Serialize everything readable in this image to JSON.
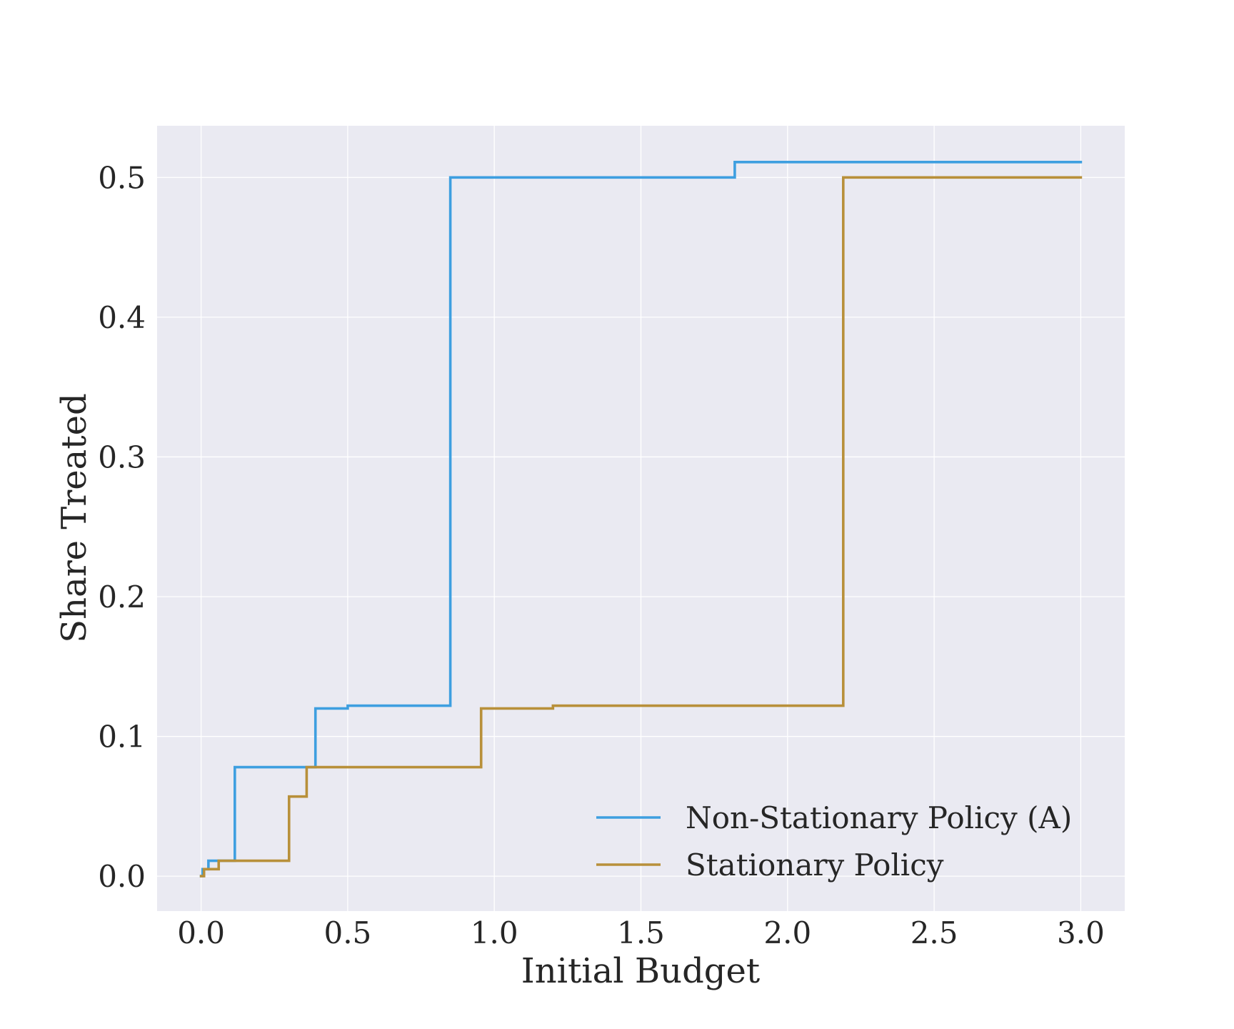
{
  "chart_data": {
    "type": "line",
    "drawstyle": "steps-post",
    "xlabel": "Initial Budget",
    "ylabel": "Share Treated",
    "xlim": [
      -0.15,
      3.15
    ],
    "ylim": [
      -0.025,
      0.537
    ],
    "xticks": [
      0.0,
      0.5,
      1.0,
      1.5,
      2.0,
      2.5,
      3.0
    ],
    "xtick_labels": [
      "0.0",
      "0.5",
      "1.0",
      "1.5",
      "2.0",
      "2.5",
      "3.0"
    ],
    "yticks": [
      0.0,
      0.1,
      0.2,
      0.3,
      0.4,
      0.5
    ],
    "ytick_labels": [
      "0.0",
      "0.1",
      "0.2",
      "0.3",
      "0.4",
      "0.5"
    ],
    "grid": true,
    "background": "#eaeaf2",
    "legend_position": "lower-right",
    "series": [
      {
        "name": "Non-Stationary Policy (A)",
        "color": "#3e9fe0",
        "x": [
          0.0,
          0.005,
          0.025,
          0.115,
          0.39,
          0.5,
          0.85,
          1.82,
          3.0
        ],
        "y": [
          0.0,
          0.005,
          0.011,
          0.078,
          0.12,
          0.122,
          0.5,
          0.511,
          0.511
        ]
      },
      {
        "name": "Stationary Policy",
        "color": "#b8903a",
        "x": [
          0.0,
          0.01,
          0.06,
          0.3,
          0.36,
          0.955,
          1.2,
          2.19,
          3.0
        ],
        "y": [
          0.0,
          0.005,
          0.011,
          0.057,
          0.078,
          0.12,
          0.122,
          0.5,
          0.5
        ]
      }
    ]
  }
}
